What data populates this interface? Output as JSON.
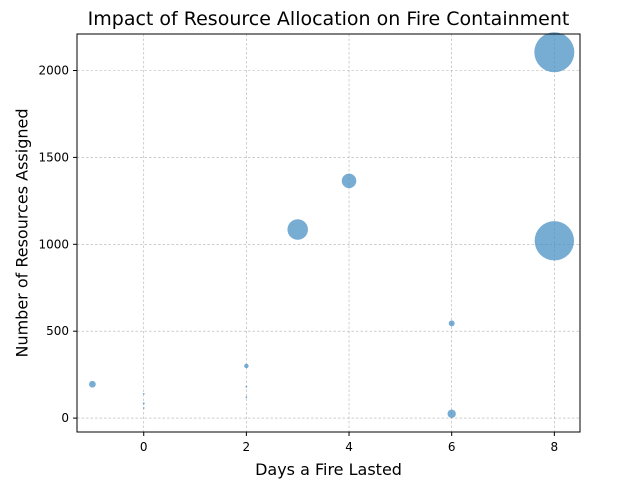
{
  "chart_data": {
    "type": "scatter",
    "title": "Impact of Resource Allocation on Fire Containment",
    "xlabel": "Days a Fire Lasted",
    "ylabel": "Number of Resources Assigned",
    "xlim": [
      -1.3,
      8.5
    ],
    "ylim": [
      -80,
      2210
    ],
    "xticks": [
      0,
      2,
      4,
      6,
      8
    ],
    "yticks": [
      0,
      500,
      1000,
      1500,
      2000
    ],
    "grid": true,
    "marker_color": "#4a90c4",
    "marker_alpha": 0.75,
    "points": [
      {
        "x": -1,
        "y": 195,
        "size": 45
      },
      {
        "x": 0,
        "y": 140,
        "size": 3
      },
      {
        "x": 0,
        "y": 85,
        "size": 4
      },
      {
        "x": 0,
        "y": 58,
        "size": 3
      },
      {
        "x": 2,
        "y": 300,
        "size": 20
      },
      {
        "x": 2,
        "y": 180,
        "size": 3
      },
      {
        "x": 2,
        "y": 120,
        "size": 3
      },
      {
        "x": 3,
        "y": 1085,
        "size": 420
      },
      {
        "x": 4,
        "y": 1365,
        "size": 210
      },
      {
        "x": 6,
        "y": 545,
        "size": 35
      },
      {
        "x": 6,
        "y": 25,
        "size": 70
      },
      {
        "x": 8,
        "y": 2105,
        "size": 1600
      },
      {
        "x": 8,
        "y": 1020,
        "size": 1550
      }
    ]
  }
}
